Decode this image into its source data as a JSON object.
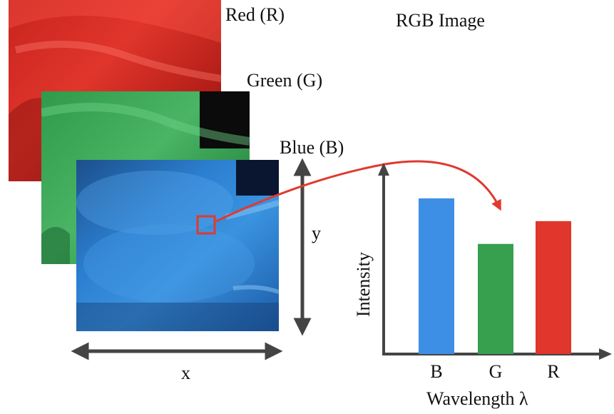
{
  "title": "RGB Image",
  "layers": {
    "red_label": "Red (R)",
    "green_label": "Green (G)",
    "blue_label": "Blue (B)"
  },
  "axes": {
    "x_label": "x",
    "y_label": "y"
  },
  "chart_data": {
    "type": "bar",
    "categories": [
      "B",
      "G",
      "R"
    ],
    "values": [
      0.82,
      0.58,
      0.7
    ],
    "colors": [
      "#3d8fe6",
      "#36a04f",
      "#e0362c"
    ],
    "xlabel": "Wavelength λ",
    "ylabel": "Intensity",
    "ylim": [
      0,
      1
    ]
  },
  "colors": {
    "red_channel": "#d92b23",
    "green_channel": "#3fa95a",
    "blue_channel": "#2f86d6",
    "selection_box": "#e03a2e",
    "arrow": "#e03a2e",
    "axis": "#444444"
  }
}
